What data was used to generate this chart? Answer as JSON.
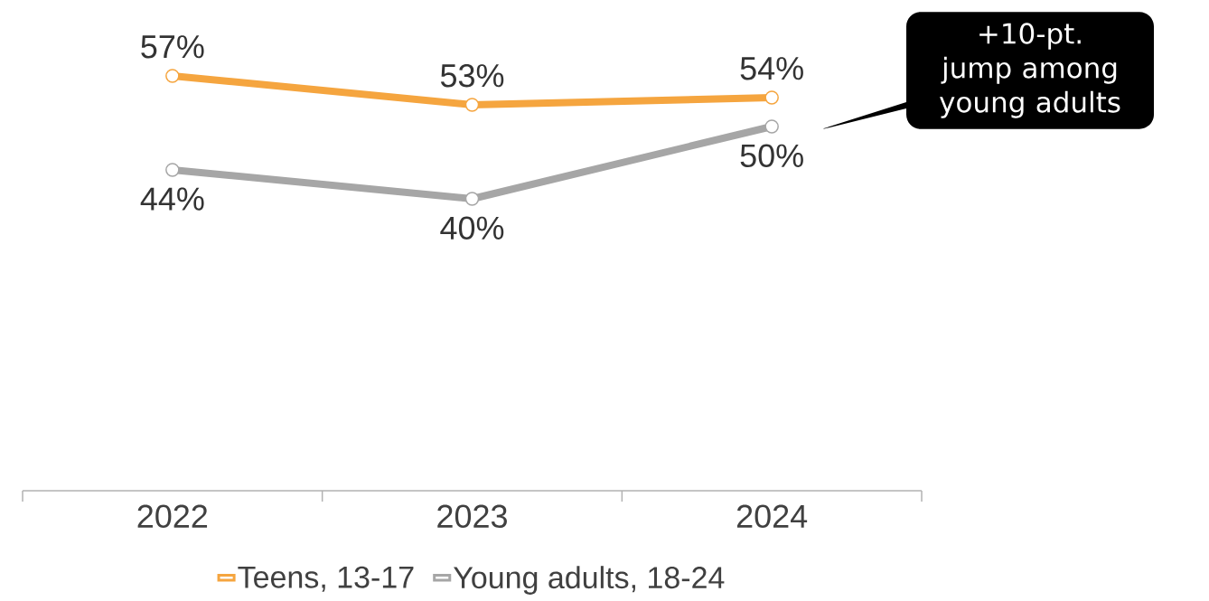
{
  "chart_data": {
    "type": "line",
    "categories": [
      "2022",
      "2023",
      "2024"
    ],
    "series": [
      {
        "name": "Teens, 13-17",
        "color": "#f5a53f",
        "values": [
          57,
          53,
          54
        ],
        "value_labels": [
          "57%",
          "53%",
          "54%"
        ]
      },
      {
        "name": "Young adults, 18-24",
        "color": "#a6a6a6",
        "values": [
          44,
          40,
          50
        ],
        "value_labels": [
          "44%",
          "40%",
          "50%"
        ]
      }
    ],
    "tick_labels": "x",
    "marker": "circle",
    "line_style": "solid",
    "legend": "bottom",
    "annotations": [
      "+10-pt. jump among young adults"
    ]
  }
}
